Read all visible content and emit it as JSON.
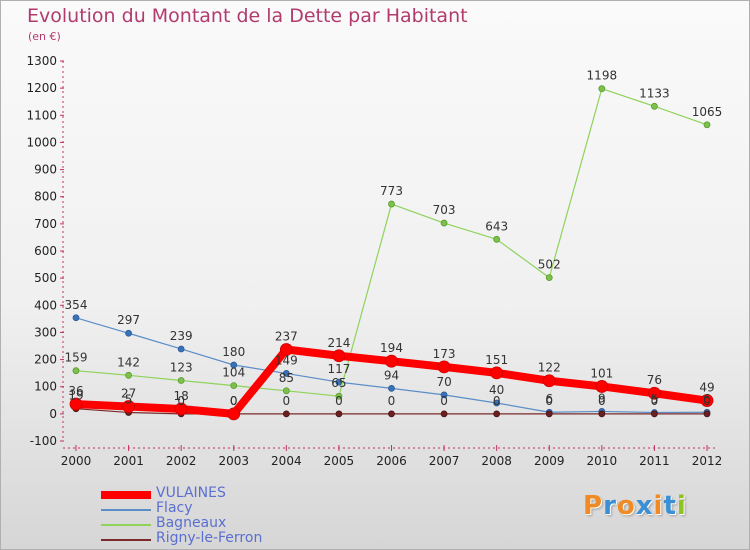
{
  "chart_data": {
    "type": "line",
    "title": "Evolution du Montant de la Dette par Habitant",
    "subtitle": "(en €)",
    "x": [
      "2000",
      "2001",
      "2002",
      "2003",
      "2004",
      "2005",
      "2006",
      "2007",
      "2008",
      "2009",
      "2010",
      "2011",
      "2012"
    ],
    "ylim": [
      -100,
      1300
    ],
    "yticks": [
      -100,
      0,
      100,
      200,
      300,
      400,
      500,
      600,
      700,
      800,
      900,
      1000,
      1100,
      1200,
      1300
    ],
    "grid": false,
    "legend_position": "bottom-left",
    "series": [
      {
        "name": "VULAINES",
        "color": "#ff0000",
        "values": [
          36,
          27,
          18,
          0,
          237,
          214,
          194,
          173,
          151,
          122,
          101,
          76,
          49
        ],
        "labels": [
          "36",
          "27",
          "18",
          "0",
          "237",
          "214",
          "194",
          "173",
          "151",
          "122",
          "101",
          "76",
          "49"
        ]
      },
      {
        "name": "Flacy",
        "color": "#5b8ec8",
        "values": [
          354,
          297,
          239,
          180,
          149,
          117,
          94,
          70,
          40,
          6,
          9,
          5,
          6
        ],
        "labels": [
          "354",
          "297",
          "239",
          "180",
          "149",
          "117",
          "94",
          "70",
          "40",
          "6",
          "9",
          "5",
          "6"
        ]
      },
      {
        "name": "Bagneaux",
        "color": "#8fd35a",
        "values": [
          159,
          142,
          123,
          104,
          85,
          65,
          773,
          703,
          643,
          502,
          1198,
          1133,
          1065
        ],
        "labels": [
          "159",
          "142",
          "123",
          "104",
          "85",
          "65",
          "773",
          "703",
          "643",
          "502",
          "1198",
          "1133",
          "1065"
        ]
      },
      {
        "name": "Rigny-le-Ferron",
        "color": "#7a2a2a",
        "values": [
          19,
          5,
          0,
          0,
          0,
          0,
          0,
          0,
          0,
          0,
          0,
          0,
          0
        ],
        "labels": [
          "19",
          "5",
          "0",
          "0",
          "0",
          "0",
          "0",
          "0",
          "0",
          "0",
          "0",
          "0",
          "0"
        ]
      }
    ]
  },
  "branding": {
    "logo_text": "Proxiti",
    "logo_letter_colors": [
      "#f08a24",
      "#3b8fd4",
      "#f08a24",
      "#3b8fd4",
      "#f08a24",
      "#3b8fd4",
      "#8fc31f"
    ]
  }
}
